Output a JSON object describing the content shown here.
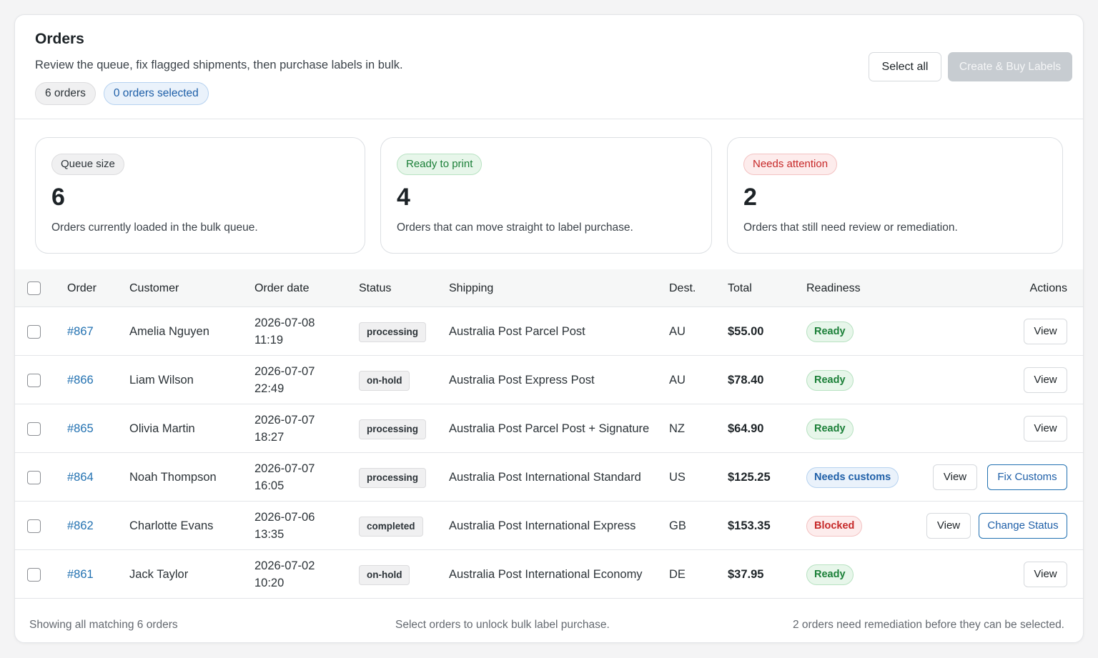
{
  "header": {
    "title": "Orders",
    "subtitle": "Review the queue, fix flagged shipments, then purchase labels in bulk.",
    "orders_count": "6 orders",
    "selected_count": "0 orders selected",
    "select_all_label": "Select all",
    "create_label": "Create & Buy Labels"
  },
  "stats": [
    {
      "badge": "Queue size",
      "value": "6",
      "desc": "Orders currently loaded in the bulk queue."
    },
    {
      "badge": "Ready to print",
      "value": "4",
      "desc": "Orders that can move straight to label purchase."
    },
    {
      "badge": "Needs attention",
      "value": "2",
      "desc": "Orders that still need review or remediation."
    }
  ],
  "table": {
    "columns": {
      "order": "Order",
      "customer": "Customer",
      "date": "Order date",
      "status": "Status",
      "shipping": "Shipping",
      "dest": "Dest.",
      "total": "Total",
      "readiness": "Readiness",
      "actions": "Actions"
    },
    "rows": [
      {
        "order": "#867",
        "customer": "Amelia Nguyen",
        "date": "2026-07-08",
        "time": "11:19",
        "status": "processing",
        "shipping": "Australia Post Parcel Post",
        "dest": "AU",
        "total": "$55.00",
        "readiness": "Ready",
        "view": "View"
      },
      {
        "order": "#866",
        "customer": "Liam Wilson",
        "date": "2026-07-07",
        "time": "22:49",
        "status": "on-hold",
        "shipping": "Australia Post Express Post",
        "dest": "AU",
        "total": "$78.40",
        "readiness": "Ready",
        "view": "View"
      },
      {
        "order": "#865",
        "customer": "Olivia Martin",
        "date": "2026-07-07",
        "time": "18:27",
        "status": "processing",
        "shipping": "Australia Post Parcel Post + Signature",
        "dest": "NZ",
        "total": "$64.90",
        "readiness": "Ready",
        "view": "View"
      },
      {
        "order": "#864",
        "customer": "Noah Thompson",
        "date": "2026-07-07",
        "time": "16:05",
        "status": "processing",
        "shipping": "Australia Post International Standard",
        "dest": "US",
        "total": "$125.25",
        "readiness": "Needs customs",
        "view": "View",
        "extra_action": "Fix Customs"
      },
      {
        "order": "#862",
        "customer": "Charlotte Evans",
        "date": "2026-07-06",
        "time": "13:35",
        "status": "completed",
        "shipping": "Australia Post International Express",
        "dest": "GB",
        "total": "$153.35",
        "readiness": "Blocked",
        "view": "View",
        "extra_action": "Change Status"
      },
      {
        "order": "#861",
        "customer": "Jack Taylor",
        "date": "2026-07-02",
        "time": "10:20",
        "status": "on-hold",
        "shipping": "Australia Post International Economy",
        "dest": "DE",
        "total": "$37.95",
        "readiness": "Ready",
        "view": "View"
      }
    ]
  },
  "footer": {
    "left": "Showing all matching 6 orders",
    "center": "Select orders to unlock bulk label purchase.",
    "right": "2 orders need remediation before they can be selected."
  },
  "colors": {
    "link": "#2271b1",
    "ready": "#1a7f37",
    "needs_customs": "#1e5fa8",
    "blocked": "#c62828"
  }
}
